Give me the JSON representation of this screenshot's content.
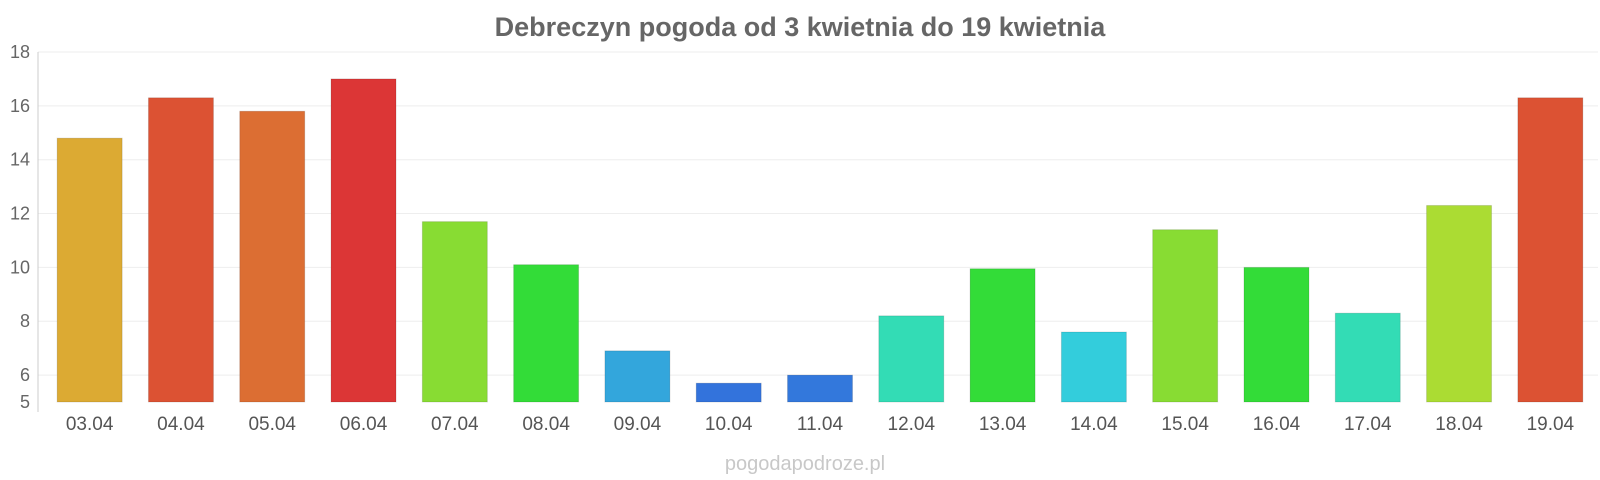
{
  "chart_data": {
    "type": "bar",
    "title": "Debreczyn pogoda od 3 kwietnia do 19 kwietnia",
    "xlabel": "",
    "ylabel": "",
    "ylim": [
      5,
      18
    ],
    "yticks": [
      5,
      6,
      8,
      10,
      12,
      14,
      16,
      18
    ],
    "grid": true,
    "categories": [
      "03.04",
      "04.04",
      "05.04",
      "06.04",
      "07.04",
      "08.04",
      "09.04",
      "10.04",
      "11.04",
      "12.04",
      "13.04",
      "14.04",
      "15.04",
      "16.04",
      "17.04",
      "18.04",
      "19.04"
    ],
    "values": [
      14.8,
      16.3,
      15.8,
      17.0,
      11.7,
      10.1,
      6.9,
      5.7,
      6.0,
      8.2,
      9.95,
      7.6,
      11.4,
      10.0,
      8.3,
      12.3,
      16.3
    ],
    "colors": [
      "#dcaa33",
      "#dc5233",
      "#dc6e33",
      "#dc3636",
      "#88dc33",
      "#33dc38",
      "#33a6dc",
      "#3373dc",
      "#3378dc",
      "#33dcb5",
      "#33dc38",
      "#33cddc",
      "#88dc33",
      "#33dc38",
      "#33dcb5",
      "#abdc33",
      "#dc5233"
    ]
  },
  "watermark": "pogodapodroze.pl"
}
